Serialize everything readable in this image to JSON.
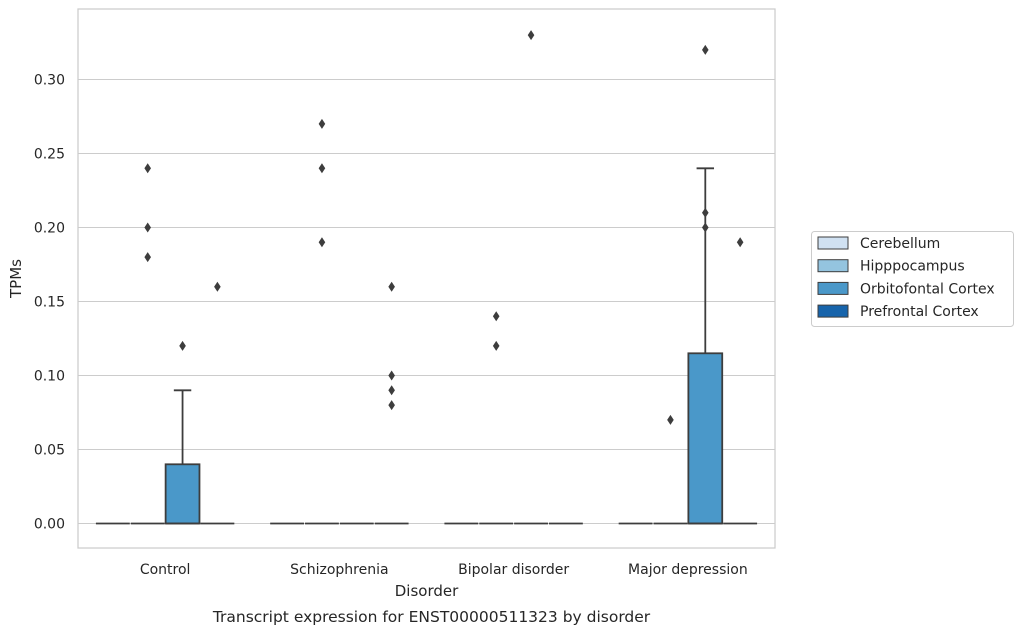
{
  "chart_data": {
    "type": "box",
    "title": "Transcript expression for ENST00000511323 by disorder",
    "xlabel": "Disorder",
    "ylabel": "TPMs",
    "ylim": [
      -0.0165,
      0.347
    ],
    "yticks": [
      "0.00",
      "0.05",
      "0.10",
      "0.15",
      "0.20",
      "0.25",
      "0.30"
    ],
    "grid": true,
    "legend_position": "right",
    "categories": [
      "Control",
      "Schizophrenia",
      "Bipolar disorder",
      "Major depression"
    ],
    "series": [
      {
        "name": "Cerebellum",
        "color": "#d0e1f2",
        "boxes": [
          {
            "q1": 0,
            "median": 0,
            "q3": 0,
            "whisker_low": 0,
            "whisker_high": 0,
            "outliers": []
          },
          {
            "q1": 0,
            "median": 0,
            "q3": 0,
            "whisker_low": 0,
            "whisker_high": 0,
            "outliers": []
          },
          {
            "q1": 0,
            "median": 0,
            "q3": 0,
            "whisker_low": 0,
            "whisker_high": 0,
            "outliers": []
          },
          {
            "q1": 0,
            "median": 0,
            "q3": 0,
            "whisker_low": 0,
            "whisker_high": 0,
            "outliers": []
          }
        ]
      },
      {
        "name": "Hipppocampus",
        "color": "#94c4df",
        "boxes": [
          {
            "q1": 0,
            "median": 0,
            "q3": 0,
            "whisker_low": 0,
            "whisker_high": 0,
            "outliers": [
              0.24,
              0.2,
              0.18
            ]
          },
          {
            "q1": 0,
            "median": 0,
            "q3": 0,
            "whisker_low": 0,
            "whisker_high": 0,
            "outliers": [
              0.27,
              0.24,
              0.19
            ]
          },
          {
            "q1": 0,
            "median": 0,
            "q3": 0,
            "whisker_low": 0,
            "whisker_high": 0,
            "outliers": [
              0.14,
              0.12
            ]
          },
          {
            "q1": 0,
            "median": 0,
            "q3": 0,
            "whisker_low": 0,
            "whisker_high": 0,
            "outliers": [
              0.07
            ]
          }
        ]
      },
      {
        "name": "Orbitofontal Cortex",
        "color": "#4a98c9",
        "boxes": [
          {
            "q1": 0,
            "median": 0,
            "q3": 0.04,
            "whisker_low": 0,
            "whisker_high": 0.09,
            "outliers": [
              0.12
            ]
          },
          {
            "q1": 0,
            "median": 0,
            "q3": 0,
            "whisker_low": 0,
            "whisker_high": 0,
            "outliers": []
          },
          {
            "q1": 0,
            "median": 0,
            "q3": 0,
            "whisker_low": 0,
            "whisker_high": 0,
            "outliers": [
              0.33
            ]
          },
          {
            "q1": 0,
            "median": 0,
            "q3": 0.115,
            "whisker_low": 0,
            "whisker_high": 0.24,
            "outliers": [
              0.32,
              0.21,
              0.2
            ]
          }
        ]
      },
      {
        "name": "Prefrontal Cortex",
        "color": "#1764ab",
        "boxes": [
          {
            "q1": 0,
            "median": 0,
            "q3": 0,
            "whisker_low": 0,
            "whisker_high": 0,
            "outliers": [
              0.16
            ]
          },
          {
            "q1": 0,
            "median": 0,
            "q3": 0,
            "whisker_low": 0,
            "whisker_high": 0,
            "outliers": [
              0.16,
              0.1,
              0.09,
              0.08
            ]
          },
          {
            "q1": 0,
            "median": 0,
            "q3": 0,
            "whisker_low": 0,
            "whisker_high": 0,
            "outliers": []
          },
          {
            "q1": 0,
            "median": 0,
            "q3": 0,
            "whisker_low": 0,
            "whisker_high": 0,
            "outliers": [
              0.19
            ]
          }
        ]
      }
    ]
  }
}
